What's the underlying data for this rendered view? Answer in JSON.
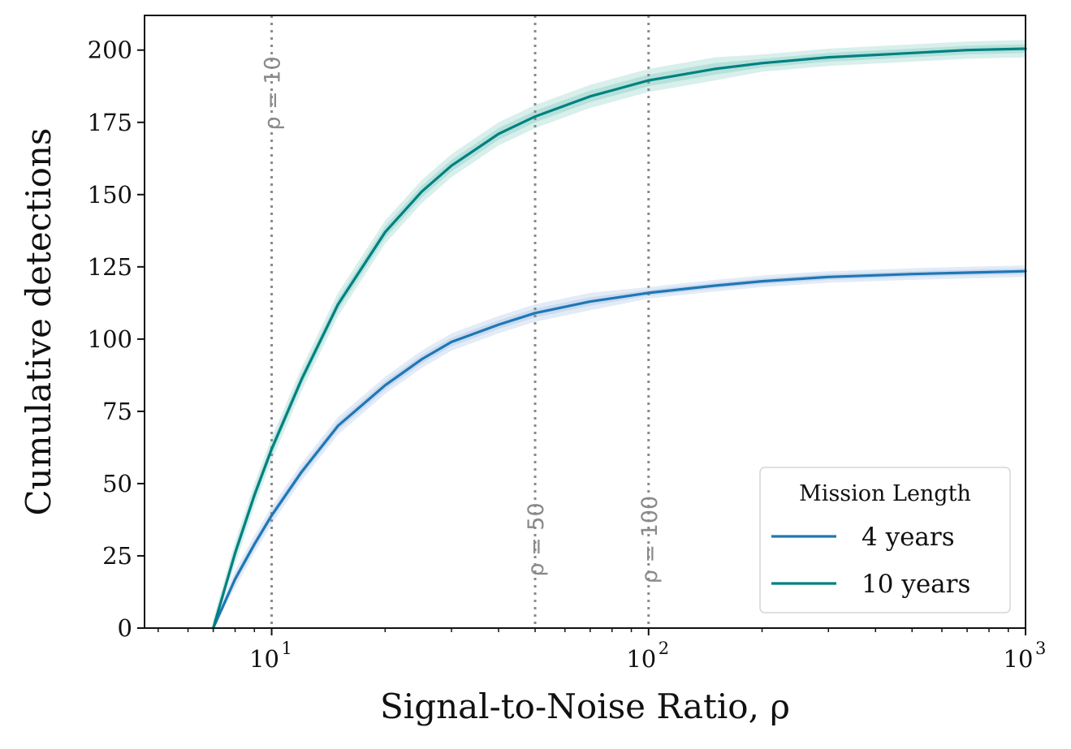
{
  "chart_data": {
    "type": "line",
    "title": "",
    "xlabel": "Signal-to-Noise Ratio, ρ",
    "ylabel": "Cumulative detections",
    "xscale": "log",
    "xlim": [
      4.6,
      1000
    ],
    "ylim": [
      0,
      212
    ],
    "x_ticks": [
      {
        "value": 10,
        "base": "10",
        "exp": "1"
      },
      {
        "value": 100,
        "base": "10",
        "exp": "2"
      },
      {
        "value": 1000,
        "base": "10",
        "exp": "3"
      }
    ],
    "y_ticks": [
      0,
      25,
      50,
      75,
      100,
      125,
      150,
      175,
      200
    ],
    "grid": false,
    "vlines": [
      {
        "x": 10,
        "label": "ρ = 10",
        "label_placement": "top"
      },
      {
        "x": 50,
        "label": "ρ = 50",
        "label_placement": "bottom"
      },
      {
        "x": 100,
        "label": "ρ = 100",
        "label_placement": "bottom"
      }
    ],
    "legend": {
      "title": "Mission Length",
      "placement": "lower-right"
    },
    "series": [
      {
        "name": "4 years",
        "color": "#1f77b4",
        "band_color": "#aec7e8",
        "x": [
          7,
          8,
          9,
          10,
          12,
          15,
          20,
          25,
          30,
          40,
          50,
          70,
          100,
          150,
          200,
          300,
          500,
          700,
          1000
        ],
        "y": [
          0,
          17,
          29,
          39,
          54,
          70,
          84,
          93,
          99,
          105,
          109,
          113,
          116,
          118.5,
          120,
          121.5,
          122.5,
          123,
          123.5
        ],
        "band": [
          2,
          3,
          3,
          3,
          3,
          3,
          3,
          3,
          3,
          3,
          3,
          3,
          2,
          2,
          2,
          2,
          2,
          2,
          2
        ]
      },
      {
        "name": "10 years",
        "color": "#008080",
        "band_color": "#8fd0c8",
        "x": [
          7,
          8,
          9,
          10,
          12,
          15,
          20,
          25,
          30,
          40,
          50,
          70,
          100,
          150,
          200,
          300,
          500,
          700,
          1000
        ],
        "y": [
          0,
          26,
          46,
          62,
          86,
          112,
          137,
          151,
          160,
          171,
          177,
          184,
          189.5,
          193.5,
          195.5,
          197.5,
          199,
          200,
          200.5
        ],
        "band": [
          3,
          4,
          4,
          4,
          4,
          4,
          4,
          4,
          4,
          4,
          4,
          4,
          4,
          4,
          3,
          3,
          3,
          3,
          3
        ]
      }
    ]
  }
}
